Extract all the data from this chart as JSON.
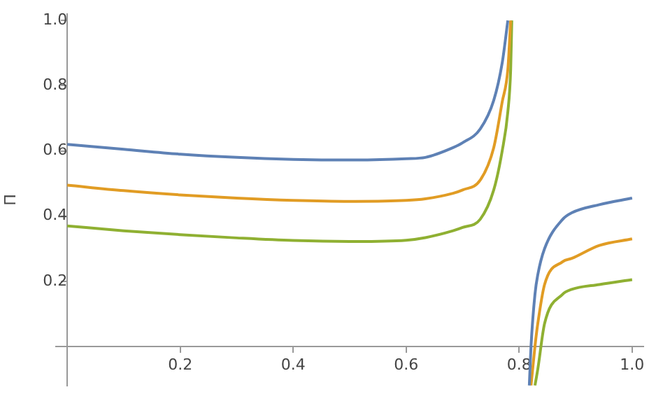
{
  "chart_data": {
    "type": "line",
    "ylabel": "Π",
    "xlim": [
      -0.02,
      1.02
    ],
    "ylim": [
      -0.12,
      1.02
    ],
    "xticks": [
      0.2,
      0.4,
      0.6,
      0.8,
      {
        "value": 1,
        "label": "1.0"
      }
    ],
    "yticks": [
      0.2,
      0.4,
      0.6,
      0.8,
      {
        "value": 1,
        "label": "1.0"
      }
    ],
    "grid": false,
    "legend": false,
    "marker": "none",
    "line_style": "solid",
    "x": [
      0,
      0.1,
      0.2,
      0.3,
      0.4,
      0.5,
      0.6,
      0.634,
      0.683,
      0.7,
      0.731,
      0.755,
      0.77,
      0.78,
      0.785,
      0.787,
      0.8,
      0.818,
      0.821,
      0.828,
      0.833,
      0.845,
      0.877,
      0.893,
      0.942,
      1.0
    ],
    "series": [
      {
        "color": "#5e81b5",
        "values": [
          0.62,
          0.605,
          0.59,
          0.58,
          0.574,
          0.572,
          0.576,
          0.58,
          0.61,
          0.625,
          0.667,
          0.755,
          0.87,
          1.0,
          null,
          null,
          null,
          -0.12,
          0.0,
          0.16,
          0.22,
          0.3,
          0.39,
          0.41,
          0.435,
          0.455
        ]
      },
      {
        "color": "#e19c24",
        "values": [
          0.495,
          0.478,
          0.465,
          0.455,
          0.448,
          0.445,
          0.448,
          0.453,
          0.47,
          0.48,
          0.51,
          0.61,
          0.75,
          0.85,
          1.0,
          null,
          null,
          null,
          -0.12,
          0.0,
          0.07,
          0.19,
          0.26,
          0.27,
          0.31,
          0.33
        ]
      },
      {
        "color": "#8fb032",
        "values": [
          0.37,
          0.355,
          0.343,
          0.333,
          0.325,
          0.322,
          0.326,
          0.334,
          0.355,
          0.365,
          0.39,
          0.48,
          0.6,
          0.72,
          0.85,
          1.0,
          null,
          null,
          null,
          -0.12,
          -0.07,
          0.07,
          0.16,
          0.175,
          0.19,
          0.205
        ]
      }
    ]
  }
}
